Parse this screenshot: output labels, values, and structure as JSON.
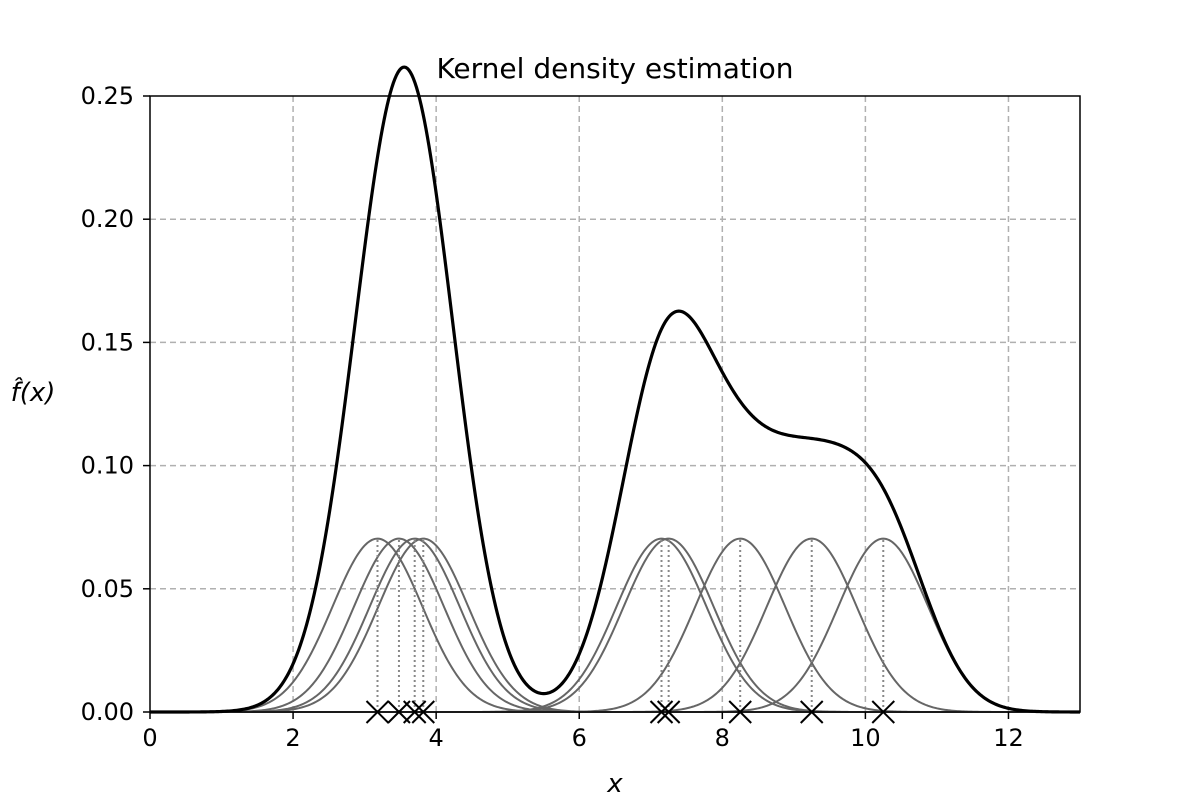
{
  "chart_data": {
    "type": "line",
    "title": "Kernel density estimation",
    "xlabel": "x",
    "ylabel": "f̂(x)",
    "xlim": [
      0,
      13
    ],
    "ylim": [
      0,
      0.25
    ],
    "x_ticks": [
      0,
      2,
      4,
      6,
      8,
      10,
      12
    ],
    "x_tick_labels": [
      "0",
      "2",
      "4",
      "6",
      "8",
      "10",
      "12"
    ],
    "y_ticks": [
      0,
      0.05,
      0.1,
      0.15,
      0.2,
      0.25
    ],
    "y_tick_labels": [
      "0.00",
      "0.05",
      "0.10",
      "0.15",
      "0.20",
      "0.25"
    ],
    "grid": true,
    "kernel": "gaussian",
    "bandwidth": 0.63,
    "samples": [
      3.18,
      3.48,
      3.7,
      3.82,
      7.15,
      7.25,
      8.25,
      9.25,
      10.25
    ],
    "series": [
      {
        "name": "",
        "role": "kde",
        "color": "#000000"
      },
      {
        "name": "",
        "role": "kernel",
        "color": "#666666"
      }
    ],
    "marker": "x"
  }
}
